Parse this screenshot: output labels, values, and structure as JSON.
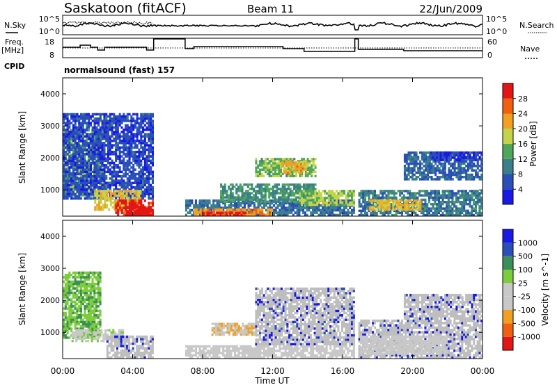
{
  "header": {
    "station": "Saskatoon (fitACF)",
    "beam": "Beam 11",
    "date": "22/Jun/2009"
  },
  "noise_panel": {
    "left_label": "N.Sky",
    "right_label": "N.Search",
    "left_ticks": [
      "10^5",
      "10^0"
    ],
    "right_ticks": [
      "10^5",
      "10^0"
    ]
  },
  "freq_panel": {
    "left_label_1": "Freq.",
    "left_label_2": "[MHz]",
    "right_label": "Nave",
    "left_ticks": [
      "18",
      "8"
    ],
    "right_ticks": [
      "60",
      "0"
    ]
  },
  "cpid": {
    "label": "CPID",
    "value": "normalsound (fast) 157"
  },
  "colors": {
    "power_scale": [
      "#1a1ae6",
      "#2a4fb8",
      "#3b7f8a",
      "#4ea65a",
      "#c4d44a",
      "#f2a020",
      "#f06010",
      "#e31515"
    ],
    "velocity_scale": [
      "#e31515",
      "#f06010",
      "#f2a020",
      "#c8c8c8",
      "#c8c8c8",
      "#7ccc3c",
      "#3b8f5a",
      "#2a4fb8",
      "#1a1ae6"
    ],
    "ground_scatter": "#bebebe"
  },
  "chart_data": {
    "type": "heatmap",
    "x_axis": {
      "label": "Time UT",
      "range_hours": [
        0,
        24
      ],
      "ticks": [
        "00:00",
        "04:00",
        "08:00",
        "12:00",
        "16:00",
        "20:00",
        "00:00"
      ]
    },
    "y_axis": {
      "label": "Slant Range [km]",
      "range_km": [
        180,
        4500
      ],
      "ticks": [
        "1000",
        "2000",
        "3000",
        "4000"
      ]
    },
    "power": {
      "colorbar_label": "Power [dB]",
      "ticks": [
        "4",
        "8",
        "12",
        "16",
        "20",
        "24",
        "28"
      ],
      "range_db": [
        0,
        30
      ],
      "data_gap_hours": [
        [
          5.2,
          7.0
        ],
        [
          16.7,
          16.9
        ]
      ],
      "regions": [
        {
          "t0": 0.0,
          "t1": 2.3,
          "r0": 800,
          "r1": 2900,
          "db": 13
        },
        {
          "t0": 0.0,
          "t1": 5.2,
          "r0": 700,
          "r1": 3400,
          "db": 5
        },
        {
          "t0": 1.8,
          "t1": 4.5,
          "r0": 350,
          "r1": 1000,
          "db": 18
        },
        {
          "t0": 3.0,
          "t1": 5.2,
          "r0": 180,
          "r1": 700,
          "db": 28
        },
        {
          "t0": 3.6,
          "t1": 5.1,
          "r0": 180,
          "r1": 500,
          "db": 30
        },
        {
          "t0": 7.0,
          "t1": 16.7,
          "r0": 180,
          "r1": 700,
          "db": 8
        },
        {
          "t0": 7.5,
          "t1": 12.0,
          "r0": 180,
          "r1": 420,
          "db": 22
        },
        {
          "t0": 8.0,
          "t1": 10.5,
          "r0": 180,
          "r1": 320,
          "db": 27
        },
        {
          "t0": 9.0,
          "t1": 14.5,
          "r0": 600,
          "r1": 1200,
          "db": 11
        },
        {
          "t0": 11.0,
          "t1": 14.5,
          "r0": 1400,
          "r1": 2000,
          "db": 14
        },
        {
          "t0": 12.5,
          "t1": 14.0,
          "r0": 1500,
          "r1": 1900,
          "db": 20
        },
        {
          "t0": 13.5,
          "t1": 16.7,
          "r0": 500,
          "r1": 1000,
          "db": 16
        },
        {
          "t0": 16.9,
          "t1": 24.0,
          "r0": 180,
          "r1": 1000,
          "db": 9
        },
        {
          "t0": 17.5,
          "t1": 20.5,
          "r0": 350,
          "r1": 700,
          "db": 19
        },
        {
          "t0": 19.5,
          "t1": 24.0,
          "r0": 1300,
          "r1": 2200,
          "db": 7
        },
        {
          "t0": 21.0,
          "t1": 24.0,
          "r0": 1900,
          "r1": 2200,
          "db": 4
        }
      ]
    },
    "velocity": {
      "colorbar_label": "Velocity [m s^-1]",
      "ticks": [
        "1000",
        "500",
        "100",
        "25",
        "-25",
        "-100",
        "-500",
        "-1000"
      ],
      "range_ms": [
        -1000,
        1000
      ],
      "data_gap_hours": [
        [
          5.2,
          7.0
        ],
        [
          16.7,
          16.9
        ]
      ],
      "regions": [
        {
          "t0": 0.0,
          "t1": 2.2,
          "r0": 800,
          "r1": 2900,
          "v": 300,
          "gs": false
        },
        {
          "t0": 0.5,
          "t1": 3.5,
          "r0": 700,
          "r1": 1100,
          "v": 70,
          "gs": false
        },
        {
          "t0": 2.5,
          "t1": 5.2,
          "r0": 180,
          "r1": 900,
          "v": 0,
          "gs": true
        },
        {
          "t0": 7.0,
          "t1": 16.7,
          "r0": 180,
          "r1": 600,
          "v": -80,
          "gs": false
        },
        {
          "t0": 8.5,
          "t1": 11.0,
          "r0": 900,
          "r1": 1300,
          "v": -300,
          "gs": false
        },
        {
          "t0": 11.0,
          "t1": 16.7,
          "r0": 600,
          "r1": 2400,
          "v": 0,
          "gs": true
        },
        {
          "t0": 16.9,
          "t1": 24.0,
          "r0": 180,
          "r1": 1400,
          "v": 0,
          "gs": true
        },
        {
          "t0": 19.5,
          "t1": 24.0,
          "r0": 1400,
          "r1": 2200,
          "v": 0,
          "gs": true
        },
        {
          "t0": 17.0,
          "t1": 22.0,
          "r0": 300,
          "r1": 900,
          "v": -150,
          "gs": false
        }
      ]
    }
  }
}
